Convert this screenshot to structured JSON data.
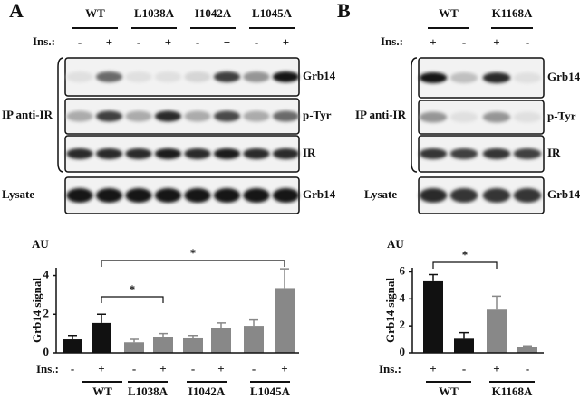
{
  "panels": [
    {
      "label": "A",
      "groups": [
        "WT",
        "L1038A",
        "I1042A",
        "L1045A"
      ],
      "ins_label": "Ins.:",
      "ins": [
        "-",
        "+",
        "-",
        "+",
        "-",
        "+",
        "-",
        "+"
      ],
      "ip_label": "IP anti-IR",
      "lysate_label": "Lysate",
      "blot_labels": [
        "Grb14",
        "p-Tyr",
        "IR",
        "Grb14"
      ]
    },
    {
      "label": "B",
      "groups": [
        "WT",
        "K1168A"
      ],
      "ins_label": "Ins.:",
      "ins": [
        "+",
        "-",
        "+",
        "-"
      ],
      "ip_label": "IP anti-IR",
      "lysate_label": "Lysate",
      "blot_labels": [
        "Grb14",
        "p-Tyr",
        "IR",
        "Grb14"
      ]
    }
  ],
  "chart_data": [
    {
      "type": "bar",
      "unit_label": "AU",
      "ylabel": "Grb14 signal",
      "ins_label": "Ins.:",
      "categories": [
        "-",
        "+",
        "-",
        "+",
        "-",
        "+",
        "-",
        "+"
      ],
      "groups": [
        "WT",
        "L1038A",
        "I1042A",
        "L1045A"
      ],
      "values": [
        0.7,
        1.55,
        0.55,
        0.8,
        0.75,
        1.3,
        1.4,
        3.35
      ],
      "errors": [
        0.2,
        0.45,
        0.15,
        0.2,
        0.15,
        0.25,
        0.3,
        1.0
      ],
      "colors": [
        "#111111",
        "#111111",
        "#888888",
        "#888888",
        "#888888",
        "#888888",
        "#888888",
        "#888888"
      ],
      "ylim": [
        0,
        4.4
      ],
      "yticks": [
        0,
        2,
        4
      ],
      "annotations": [
        "*",
        "*"
      ]
    },
    {
      "type": "bar",
      "unit_label": "AU",
      "ylabel": "Grb14 signal",
      "ins_label": "Ins.:",
      "categories": [
        "+",
        "-",
        "+",
        "-"
      ],
      "groups": [
        "WT",
        "K1168A"
      ],
      "values": [
        5.3,
        1.05,
        3.2,
        0.45
      ],
      "errors": [
        0.5,
        0.45,
        1.0,
        0.07
      ],
      "colors": [
        "#111111",
        "#111111",
        "#888888",
        "#888888"
      ],
      "ylim": [
        0,
        6.3
      ],
      "yticks": [
        0,
        2,
        4,
        6
      ],
      "annotations": [
        "*"
      ]
    }
  ]
}
